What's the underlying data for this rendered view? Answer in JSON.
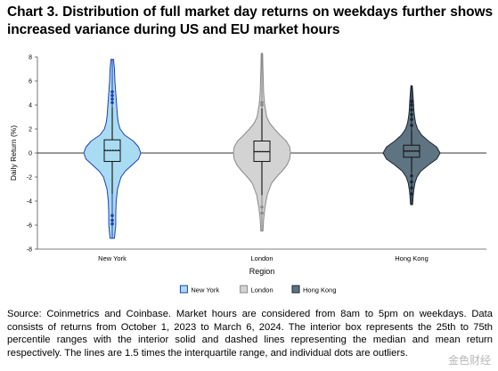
{
  "title": "Chart 3. Distribution of full market day returns on weekdays further shows increased variance during US and EU market hours",
  "source": "Source: Coinmetrics and Coinbase. Market hours are considered from 8am to 5pm on weekdays. Data consists of returns from October 1, 2023 to March 6, 2024. The interior box represents the 25th to 75th percentile ranges with the interior solid and dashed lines representing the median and mean return respectively. The lines are 1.5 times the interquartile range, and individual dots are outliers.",
  "watermark": "金色财经",
  "chart_data": {
    "type": "violin",
    "xlabel": "Region",
    "ylabel": "Daily Return (%)",
    "ylim": [
      -8,
      8
    ],
    "yticks": [
      -8,
      -6,
      -4,
      -2,
      0,
      2,
      4,
      6,
      8
    ],
    "legend_position": "bottom",
    "grid": false,
    "series": [
      {
        "name": "New York",
        "color": "#a9dcf2",
        "edge": "#1f3fb3",
        "min": -7.1,
        "max": 7.8,
        "q1": -0.7,
        "median": 0.2,
        "mean": 0.25,
        "q3": 1.1,
        "whisker_low": -3.4,
        "whisker_high": 3.8,
        "outliers": [
          4.2,
          4.5,
          4.8,
          5.1,
          -5.2,
          -5.6,
          -5.9
        ],
        "density": [
          [
            -7.1,
            0.05
          ],
          [
            -6,
            0.08
          ],
          [
            -5,
            0.08
          ],
          [
            -4,
            0.09
          ],
          [
            -3,
            0.12
          ],
          [
            -2,
            0.2
          ],
          [
            -1.5,
            0.3
          ],
          [
            -1,
            0.45
          ],
          [
            -0.5,
            0.6
          ],
          [
            0,
            0.65
          ],
          [
            0.5,
            0.6
          ],
          [
            1,
            0.48
          ],
          [
            1.5,
            0.28
          ],
          [
            2,
            0.18
          ],
          [
            2.5,
            0.14
          ],
          [
            3,
            0.12
          ],
          [
            4,
            0.1
          ],
          [
            5,
            0.08
          ],
          [
            6,
            0.06
          ],
          [
            7,
            0.05
          ],
          [
            7.8,
            0.03
          ]
        ]
      },
      {
        "name": "London",
        "color": "#d3d3d3",
        "edge": "#8a8a8a",
        "min": -6.5,
        "max": 8.3,
        "q1": -0.7,
        "median": 0.1,
        "mean": 0.15,
        "q3": 1.0,
        "whisker_low": -3.5,
        "whisker_high": 3.7,
        "outliers": [
          4.0,
          4.2,
          -4.5,
          -5.0
        ],
        "density": [
          [
            -6.5,
            0.03
          ],
          [
            -5.5,
            0.05
          ],
          [
            -4.5,
            0.09
          ],
          [
            -3.5,
            0.15
          ],
          [
            -2.5,
            0.28
          ],
          [
            -2,
            0.42
          ],
          [
            -1.5,
            0.58
          ],
          [
            -1,
            0.72
          ],
          [
            -0.5,
            0.8
          ],
          [
            0,
            0.82
          ],
          [
            0.5,
            0.8
          ],
          [
            1,
            0.7
          ],
          [
            1.5,
            0.52
          ],
          [
            2,
            0.36
          ],
          [
            2.5,
            0.22
          ],
          [
            3,
            0.14
          ],
          [
            4,
            0.08
          ],
          [
            5,
            0.05
          ],
          [
            6,
            0.04
          ],
          [
            7,
            0.03
          ],
          [
            8.3,
            0.02
          ]
        ]
      },
      {
        "name": "Hong Kong",
        "color": "#5f7482",
        "edge": "#1a2430",
        "min": -4.3,
        "max": 5.6,
        "q1": -0.35,
        "median": 0.15,
        "mean": 0.2,
        "q3": 0.65,
        "whisker_low": -1.6,
        "whisker_high": 1.9,
        "outliers": [
          2.3,
          2.8,
          3.2,
          3.6,
          4.0,
          4.3,
          -1.9,
          -2.4,
          -2.9,
          -3.4
        ],
        "density": [
          [
            -4.3,
            0.03
          ],
          [
            -3.5,
            0.05
          ],
          [
            -3,
            0.07
          ],
          [
            -2.5,
            0.1
          ],
          [
            -2,
            0.16
          ],
          [
            -1.5,
            0.28
          ],
          [
            -1,
            0.5
          ],
          [
            -0.5,
            0.75
          ],
          [
            0,
            0.85
          ],
          [
            0.5,
            0.75
          ],
          [
            1,
            0.5
          ],
          [
            1.5,
            0.3
          ],
          [
            2,
            0.18
          ],
          [
            2.5,
            0.12
          ],
          [
            3,
            0.09
          ],
          [
            3.5,
            0.07
          ],
          [
            4,
            0.06
          ],
          [
            4.5,
            0.05
          ],
          [
            5.6,
            0.02
          ]
        ]
      }
    ]
  }
}
